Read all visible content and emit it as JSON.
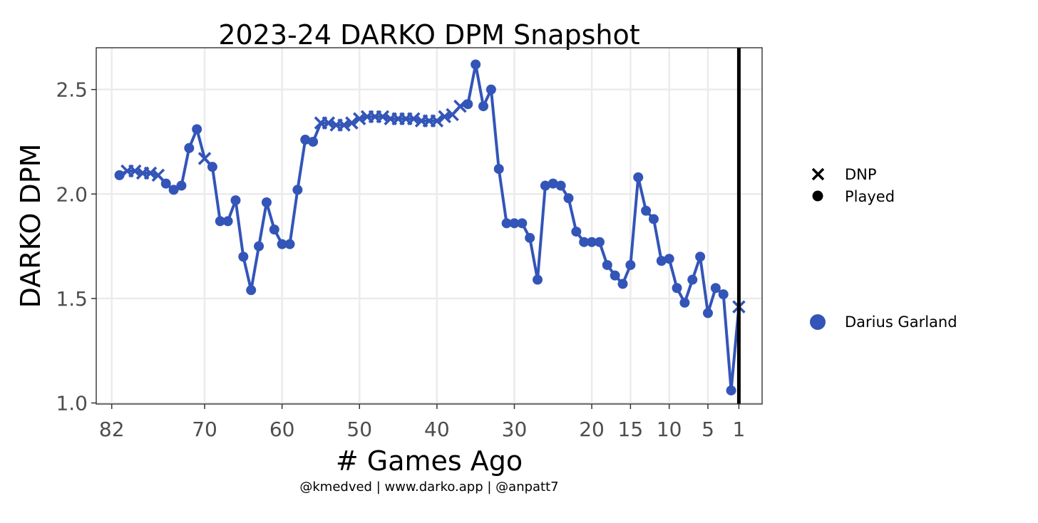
{
  "chart_data": {
    "type": "line",
    "title": "2023-24 DARKO DPM Snapshot",
    "xlabel": "# Games Ago",
    "ylabel": "DARKO DPM",
    "caption": "@kmedved | www.darko.app | @anpatt7",
    "x_reversed": true,
    "xlim": [
      84,
      -2
    ],
    "ylim": [
      0.995,
      2.7
    ],
    "x_ticks": [
      82,
      70,
      60,
      50,
      40,
      30,
      20,
      15,
      10,
      5,
      1
    ],
    "y_ticks": [
      1.0,
      1.5,
      2.0,
      2.5
    ],
    "y_tick_labels": [
      "1.0",
      "1.5",
      "2.0",
      "2.5"
    ],
    "grid": true,
    "reference_line_x": 1,
    "legend": {
      "shape_entries": [
        {
          "label": "DNP",
          "marker": "x"
        },
        {
          "label": "Played",
          "marker": "circle"
        }
      ],
      "color_entries": [
        {
          "label": "Darius Garland",
          "color": "#3355b8"
        }
      ],
      "placement": "right"
    },
    "colors": {
      "series": "#3355b8",
      "grid": "#ebebeb",
      "reference": "#000000"
    },
    "series": [
      {
        "name": "Darius Garland",
        "points": [
          {
            "x": 81,
            "y": 2.09,
            "status": "Played"
          },
          {
            "x": 80,
            "y": 2.11,
            "status": "DNP"
          },
          {
            "x": 79,
            "y": 2.11,
            "status": "DNP"
          },
          {
            "x": 78,
            "y": 2.1,
            "status": "DNP"
          },
          {
            "x": 77,
            "y": 2.1,
            "status": "DNP"
          },
          {
            "x": 76,
            "y": 2.09,
            "status": "DNP"
          },
          {
            "x": 75,
            "y": 2.05,
            "status": "Played"
          },
          {
            "x": 74,
            "y": 2.02,
            "status": "Played"
          },
          {
            "x": 73,
            "y": 2.04,
            "status": "Played"
          },
          {
            "x": 72,
            "y": 2.22,
            "status": "Played"
          },
          {
            "x": 71,
            "y": 2.31,
            "status": "Played"
          },
          {
            "x": 70,
            "y": 2.17,
            "status": "DNP"
          },
          {
            "x": 69,
            "y": 2.13,
            "status": "Played"
          },
          {
            "x": 68,
            "y": 1.87,
            "status": "Played"
          },
          {
            "x": 67,
            "y": 1.87,
            "status": "Played"
          },
          {
            "x": 66,
            "y": 1.97,
            "status": "Played"
          },
          {
            "x": 65,
            "y": 1.7,
            "status": "Played"
          },
          {
            "x": 64,
            "y": 1.54,
            "status": "Played"
          },
          {
            "x": 63,
            "y": 1.75,
            "status": "Played"
          },
          {
            "x": 62,
            "y": 1.96,
            "status": "Played"
          },
          {
            "x": 61,
            "y": 1.83,
            "status": "Played"
          },
          {
            "x": 60,
            "y": 1.76,
            "status": "Played"
          },
          {
            "x": 59,
            "y": 1.76,
            "status": "Played"
          },
          {
            "x": 58,
            "y": 2.02,
            "status": "Played"
          },
          {
            "x": 57,
            "y": 2.26,
            "status": "Played"
          },
          {
            "x": 56,
            "y": 2.25,
            "status": "Played"
          },
          {
            "x": 55,
            "y": 2.34,
            "status": "DNP"
          },
          {
            "x": 54,
            "y": 2.34,
            "status": "DNP"
          },
          {
            "x": 53,
            "y": 2.33,
            "status": "DNP"
          },
          {
            "x": 52,
            "y": 2.33,
            "status": "DNP"
          },
          {
            "x": 51,
            "y": 2.34,
            "status": "DNP"
          },
          {
            "x": 50,
            "y": 2.36,
            "status": "DNP"
          },
          {
            "x": 49,
            "y": 2.37,
            "status": "DNP"
          },
          {
            "x": 48,
            "y": 2.37,
            "status": "DNP"
          },
          {
            "x": 47,
            "y": 2.37,
            "status": "DNP"
          },
          {
            "x": 46,
            "y": 2.36,
            "status": "DNP"
          },
          {
            "x": 45,
            "y": 2.36,
            "status": "DNP"
          },
          {
            "x": 44,
            "y": 2.36,
            "status": "DNP"
          },
          {
            "x": 43,
            "y": 2.36,
            "status": "DNP"
          },
          {
            "x": 42,
            "y": 2.35,
            "status": "DNP"
          },
          {
            "x": 41,
            "y": 2.35,
            "status": "DNP"
          },
          {
            "x": 40,
            "y": 2.35,
            "status": "DNP"
          },
          {
            "x": 39,
            "y": 2.37,
            "status": "DNP"
          },
          {
            "x": 38,
            "y": 2.38,
            "status": "DNP"
          },
          {
            "x": 37,
            "y": 2.42,
            "status": "DNP"
          },
          {
            "x": 36,
            "y": 2.43,
            "status": "Played"
          },
          {
            "x": 35,
            "y": 2.62,
            "status": "Played"
          },
          {
            "x": 34,
            "y": 2.42,
            "status": "Played"
          },
          {
            "x": 33,
            "y": 2.5,
            "status": "Played"
          },
          {
            "x": 32,
            "y": 2.12,
            "status": "Played"
          },
          {
            "x": 31,
            "y": 1.86,
            "status": "Played"
          },
          {
            "x": 30,
            "y": 1.86,
            "status": "Played"
          },
          {
            "x": 29,
            "y": 1.86,
            "status": "Played"
          },
          {
            "x": 28,
            "y": 1.79,
            "status": "Played"
          },
          {
            "x": 27,
            "y": 1.59,
            "status": "Played"
          },
          {
            "x": 26,
            "y": 2.04,
            "status": "Played"
          },
          {
            "x": 25,
            "y": 2.05,
            "status": "Played"
          },
          {
            "x": 24,
            "y": 2.04,
            "status": "Played"
          },
          {
            "x": 23,
            "y": 1.98,
            "status": "Played"
          },
          {
            "x": 22,
            "y": 1.82,
            "status": "Played"
          },
          {
            "x": 21,
            "y": 1.77,
            "status": "Played"
          },
          {
            "x": 20,
            "y": 1.77,
            "status": "Played"
          },
          {
            "x": 19,
            "y": 1.77,
            "status": "Played"
          },
          {
            "x": 18,
            "y": 1.66,
            "status": "Played"
          },
          {
            "x": 17,
            "y": 1.61,
            "status": "Played"
          },
          {
            "x": 16,
            "y": 1.57,
            "status": "Played"
          },
          {
            "x": 15,
            "y": 1.66,
            "status": "Played"
          },
          {
            "x": 14,
            "y": 2.08,
            "status": "Played"
          },
          {
            "x": 13,
            "y": 1.92,
            "status": "Played"
          },
          {
            "x": 12,
            "y": 1.88,
            "status": "Played"
          },
          {
            "x": 11,
            "y": 1.68,
            "status": "Played"
          },
          {
            "x": 10,
            "y": 1.69,
            "status": "Played"
          },
          {
            "x": 9,
            "y": 1.55,
            "status": "Played"
          },
          {
            "x": 8,
            "y": 1.48,
            "status": "Played"
          },
          {
            "x": 7,
            "y": 1.59,
            "status": "Played"
          },
          {
            "x": 6,
            "y": 1.7,
            "status": "Played"
          },
          {
            "x": 5,
            "y": 1.43,
            "status": "Played"
          },
          {
            "x": 4,
            "y": 1.55,
            "status": "Played"
          },
          {
            "x": 3,
            "y": 1.52,
            "status": "Played"
          },
          {
            "x": 2,
            "y": 1.06,
            "status": "Played"
          },
          {
            "x": 1,
            "y": 1.46,
            "status": "DNP"
          }
        ]
      }
    ]
  }
}
